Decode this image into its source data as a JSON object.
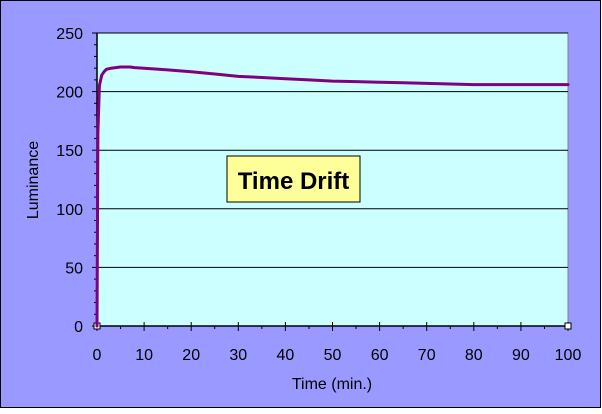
{
  "chart_data": {
    "type": "line",
    "title": "Time Drift",
    "xlabel": "Time (min.)",
    "ylabel": "Luminance",
    "xlim": [
      0,
      100
    ],
    "ylim": [
      0,
      250
    ],
    "x_ticks": [
      0,
      10,
      20,
      30,
      40,
      50,
      60,
      70,
      80,
      90,
      100
    ],
    "y_ticks": [
      0,
      50,
      100,
      150,
      200,
      250
    ],
    "grid": "horizontal",
    "legend": "none",
    "series": [
      {
        "color": "#800080",
        "x": [
          0,
          0.2,
          0.5,
          1,
          1.5,
          2,
          3,
          4,
          5,
          6,
          7,
          8,
          10,
          15,
          20,
          25,
          30,
          35,
          40,
          45,
          50,
          55,
          60,
          65,
          70,
          75,
          80,
          85,
          90,
          95,
          100
        ],
        "y": [
          0,
          165,
          205,
          214,
          217,
          219,
          220,
          220.5,
          221,
          221,
          221,
          220.5,
          220,
          218.5,
          217,
          215,
          213,
          212,
          211,
          210,
          209,
          208.5,
          208,
          207.5,
          207,
          206.5,
          206,
          206,
          206,
          206,
          206
        ]
      }
    ]
  },
  "colors": {
    "outer_background": "#9999ff",
    "plot_background": "#ccffff",
    "title_box": "#ffff99",
    "line": "#800080"
  }
}
